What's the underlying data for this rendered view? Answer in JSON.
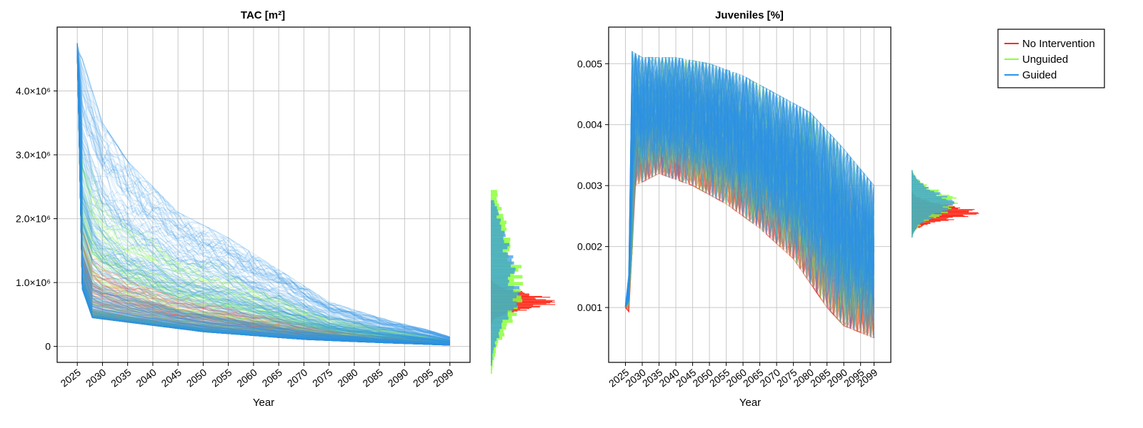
{
  "colors": {
    "no_intervention": "#ff2a1a",
    "unguided": "#8cff3a",
    "guided": "#2f93e8",
    "grid": "#c9c9c9"
  },
  "legend": {
    "entries": [
      {
        "label": "No Intervention",
        "color": "#ff2a1a"
      },
      {
        "label": "Unguided",
        "color": "#8cff3a"
      },
      {
        "label": "Guided",
        "color": "#2f93e8"
      }
    ],
    "placement": "right"
  },
  "chart_data": [
    {
      "type": "line",
      "title": "TAC [m²]",
      "xlabel": "Year",
      "ylabel": "",
      "xlim": [
        2021,
        2103
      ],
      "ylim": [
        -250000,
        5000000
      ],
      "x_ticks": [
        "2025",
        "2030",
        "2035",
        "2040",
        "2045",
        "2050",
        "2055",
        "2060",
        "2065",
        "2070",
        "2075",
        "2080",
        "2085",
        "2090",
        "2095",
        "2099"
      ],
      "x_tick_values": [
        2025,
        2030,
        2035,
        2040,
        2045,
        2050,
        2055,
        2060,
        2065,
        2070,
        2075,
        2080,
        2085,
        2090,
        2095,
        2099
      ],
      "y_ticks": [
        "0",
        "1.0×10⁶",
        "2.0×10⁶",
        "3.0×10⁶",
        "4.0×10⁶"
      ],
      "y_tick_values": [
        0,
        1000000,
        2000000,
        3000000,
        4000000
      ],
      "grid": true,
      "series_summary": {
        "start_value": 4750000,
        "fast_decline_floor": [
          [
            2025,
            4750000
          ],
          [
            2026,
            900000
          ],
          [
            2028,
            450000
          ],
          [
            2035,
            380000
          ],
          [
            2050,
            230000
          ],
          [
            2070,
            110000
          ],
          [
            2085,
            60000
          ],
          [
            2099,
            20000
          ]
        ],
        "slow_decline_ceiling": [
          [
            2025,
            4750000
          ],
          [
            2030,
            3500000
          ],
          [
            2035,
            2900000
          ],
          [
            2045,
            2100000
          ],
          [
            2055,
            1700000
          ],
          [
            2065,
            1200000
          ],
          [
            2075,
            700000
          ],
          [
            2085,
            450000
          ],
          [
            2095,
            250000
          ],
          [
            2099,
            150000
          ]
        ]
      },
      "marginal_histogram": {
        "no_intervention": {
          "center": 700000,
          "spread": 120000
        },
        "unguided": {
          "center": 850000,
          "spread": 500000
        },
        "guided": {
          "center": 850000,
          "spread": 450000
        }
      }
    },
    {
      "type": "line",
      "title": "Juveniles [%]",
      "xlabel": "Year",
      "ylabel": "",
      "xlim": [
        2020,
        2104
      ],
      "ylim": [
        0.0001,
        0.0056
      ],
      "x_ticks": [
        "2025",
        "2030",
        "2035",
        "2040",
        "2045",
        "2050",
        "2055",
        "2060",
        "2065",
        "2070",
        "2075",
        "2080",
        "2085",
        "2090",
        "2095",
        "2099"
      ],
      "x_tick_values": [
        2025,
        2030,
        2035,
        2040,
        2045,
        2050,
        2055,
        2060,
        2065,
        2070,
        2075,
        2080,
        2085,
        2090,
        2095,
        2099
      ],
      "y_ticks": [
        "0.001",
        "0.002",
        "0.003",
        "0.004",
        "0.005"
      ],
      "y_tick_values": [
        0.001,
        0.002,
        0.003,
        0.004,
        0.005
      ],
      "grid": true,
      "series_summary": {
        "upper_envelope": [
          [
            2025,
            0.0011
          ],
          [
            2027,
            0.0052
          ],
          [
            2030,
            0.0051
          ],
          [
            2040,
            0.0051
          ],
          [
            2050,
            0.005
          ],
          [
            2060,
            0.0048
          ],
          [
            2070,
            0.0045
          ],
          [
            2080,
            0.0042
          ],
          [
            2090,
            0.0036
          ],
          [
            2099,
            0.003
          ]
        ],
        "lower_envelope": [
          [
            2025,
            0.001
          ],
          [
            2026,
            0.0009
          ],
          [
            2028,
            0.003
          ],
          [
            2035,
            0.0032
          ],
          [
            2045,
            0.003
          ],
          [
            2055,
            0.0027
          ],
          [
            2065,
            0.0023
          ],
          [
            2075,
            0.0018
          ],
          [
            2085,
            0.001
          ],
          [
            2090,
            0.0007
          ],
          [
            2099,
            0.0005
          ]
        ]
      },
      "marginal_histogram": {
        "no_intervention": {
          "center": 0.00255,
          "spread": 0.00012
        },
        "unguided": {
          "center": 0.0027,
          "spread": 0.0002
        },
        "guided": {
          "center": 0.0027,
          "spread": 0.0002
        }
      }
    }
  ]
}
